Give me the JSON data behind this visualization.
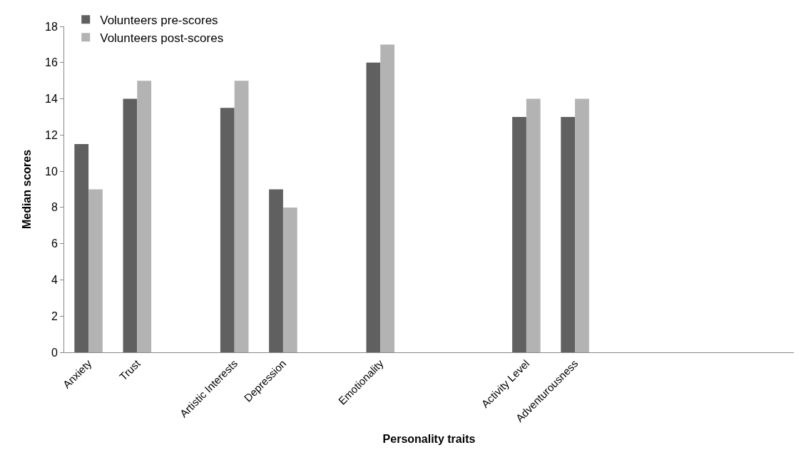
{
  "chart_data": {
    "type": "bar",
    "xlabel": "Personality traits",
    "ylabel": "Median scores",
    "categories": [
      "Anxiety",
      "Trust",
      null,
      "Artistic Interests",
      "Depression",
      null,
      "Emotionality",
      null,
      null,
      "Activity Level",
      "Adventurousness",
      null,
      null,
      null,
      null
    ],
    "series": [
      {
        "name": "Volunteers pre-scores",
        "color": "#606060",
        "values": [
          11.5,
          14,
          null,
          13.5,
          9,
          null,
          16,
          null,
          null,
          13,
          13,
          null,
          null,
          null,
          null
        ]
      },
      {
        "name": "Volunteers post-scores",
        "color": "#b3b3b3",
        "values": [
          9,
          15,
          null,
          15,
          8,
          null,
          17,
          null,
          null,
          14,
          14,
          null,
          null,
          null,
          null
        ]
      }
    ],
    "ylim": [
      0,
      18
    ],
    "yticks": [
      0,
      2,
      4,
      6,
      8,
      10,
      12,
      14,
      16,
      18
    ],
    "legend": "top left"
  }
}
